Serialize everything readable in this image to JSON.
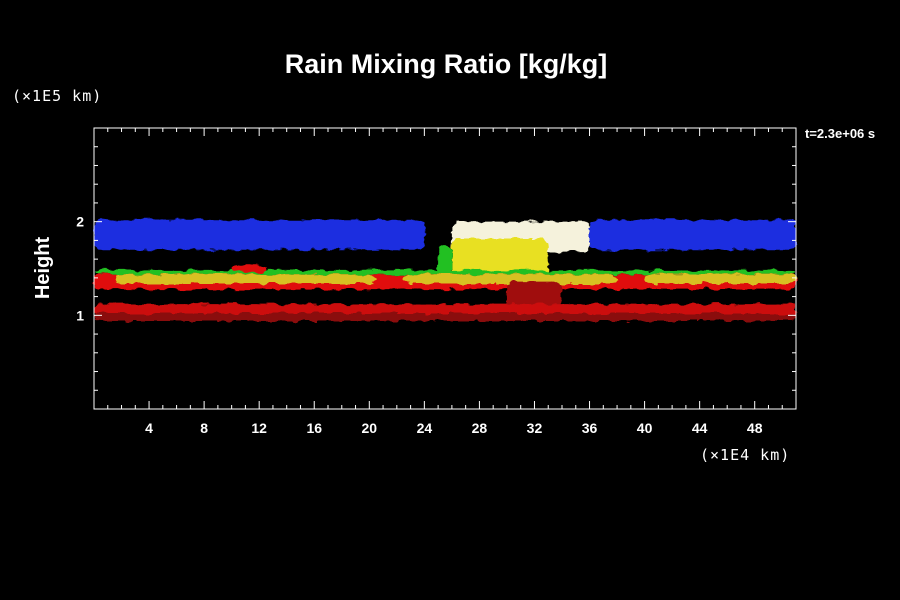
{
  "chart_data": {
    "type": "heatmap",
    "title": "Rain Mixing Ratio [kg/kg]",
    "ylabel": "Height",
    "xlabel": "",
    "x_unit": "(×1E4 km)",
    "y_unit": "(×1E5 km)",
    "time_label": "t=2.3e+06 s",
    "xlim": [
      0,
      51
    ],
    "ylim": [
      0,
      3
    ],
    "x_ticks": [
      4,
      8,
      12,
      16,
      20,
      24,
      28,
      32,
      36,
      40,
      44,
      48
    ],
    "x_tick_labels": [
      "4",
      "8",
      "12",
      "16",
      "20",
      "24",
      "28",
      "32",
      "36",
      "40",
      "44",
      "48"
    ],
    "y_ticks": [
      1,
      2
    ],
    "y_tick_labels": [
      "1",
      "2"
    ],
    "x_minor_step": 1,
    "y_minor_step": 0.2,
    "regions": [
      {
        "name": "upper-band-left",
        "color": "#1a2fe0",
        "x": [
          0,
          24
        ],
        "y": [
          1.7,
          2.02
        ]
      },
      {
        "name": "upper-band-right",
        "color": "#1a2fe0",
        "x": [
          36,
          51
        ],
        "y": [
          1.7,
          2.02
        ]
      },
      {
        "name": "anvil-white",
        "color": "#f5f2dc",
        "x": [
          26,
          36
        ],
        "y": [
          1.68,
          2.0
        ]
      },
      {
        "name": "convective-column",
        "color": "#e8e020",
        "x": [
          26,
          33
        ],
        "y": [
          1.42,
          1.82
        ]
      },
      {
        "name": "column-fringe-green",
        "color": "#20c020",
        "x": [
          25,
          26
        ],
        "y": [
          1.45,
          1.75
        ]
      },
      {
        "name": "mid-band-red",
        "color": "#e01010",
        "x": [
          0,
          51
        ],
        "y": [
          1.28,
          1.44
        ]
      },
      {
        "name": "mid-band-yellow-1",
        "color": "#d8c020",
        "x": [
          1.5,
          20.5
        ],
        "y": [
          1.34,
          1.44
        ]
      },
      {
        "name": "mid-band-yellow-2",
        "color": "#d8c020",
        "x": [
          22.5,
          38
        ],
        "y": [
          1.34,
          1.44
        ]
      },
      {
        "name": "mid-band-yellow-3",
        "color": "#d8c020",
        "x": [
          40,
          51
        ],
        "y": [
          1.34,
          1.44
        ]
      },
      {
        "name": "mid-band-green",
        "color": "#20c020",
        "x": [
          0,
          51
        ],
        "y": [
          1.44,
          1.48
        ]
      },
      {
        "name": "small-cell",
        "color": "#e01010",
        "x": [
          10,
          12.5
        ],
        "y": [
          1.46,
          1.54
        ]
      },
      {
        "name": "downdraft-darkred",
        "color": "#a01010",
        "x": [
          30,
          34
        ],
        "y": [
          1.06,
          1.36
        ]
      },
      {
        "name": "low-band-red",
        "color": "#cc1010",
        "x": [
          0,
          51
        ],
        "y": [
          0.98,
          1.12
        ]
      },
      {
        "name": "low-band-darkred",
        "color": "#8a0808",
        "x": [
          0,
          51
        ],
        "y": [
          0.94,
          1.02
        ]
      }
    ]
  }
}
